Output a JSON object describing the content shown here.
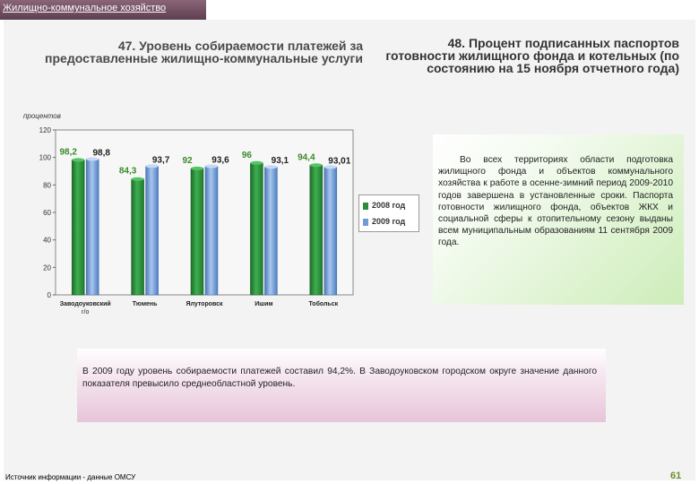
{
  "header": {
    "title": "Жилищно-коммунальное хозяйство"
  },
  "left_title": "47. Уровень собираемости платежей за предоставленные жилищно-коммунальные услуги",
  "right_title": "48. Процент подписанных паспортов готовности жилищного фонда и котельных (по состоянию на 15 ноября отчетного года)",
  "chart_data": {
    "type": "bar",
    "ylabel": "процентов",
    "ylim": [
      0,
      120
    ],
    "yticks": [
      0,
      20,
      40,
      60,
      80,
      100,
      120
    ],
    "categories": [
      "Заводоуковский г/о",
      "Тюмень",
      "Ялуторовск",
      "Ишим",
      "Тобольск"
    ],
    "series": [
      {
        "name": "2008 год",
        "values": [
          98.2,
          84.3,
          92,
          96,
          94.4
        ],
        "labels": [
          "98,2",
          "84,3",
          "92",
          "96",
          "94,4"
        ],
        "color": "#2e8b3c"
      },
      {
        "name": "2009 год",
        "values": [
          98.8,
          93.7,
          93.6,
          93.1,
          93.01
        ],
        "labels": [
          "98,8",
          "93,7",
          "93,6",
          "93,1",
          "93,01"
        ],
        "color": "#6f9bd6"
      }
    ],
    "legend_position": "right",
    "grid": false
  },
  "info_text": "Во всех территориях области подготовка жилищного фонда и объектов коммунального хозяйства к работе в осенне-зимний период 2009-2010 годов завершена в установленные сроки. Паспорта готовности жилищного фонда, объектов ЖКХ и социальной сферы к отопительному сезону выданы всем муниципальным образованиям 11 сентября 2009 года.",
  "summary_text": "В 2009 году уровень собираемости платежей составил 94,2%. В Заводоуковском городском округе значение данного показателя превысило среднеобластной уровень.",
  "source": "Источник информации - данные ОМСУ",
  "page_number": "61"
}
